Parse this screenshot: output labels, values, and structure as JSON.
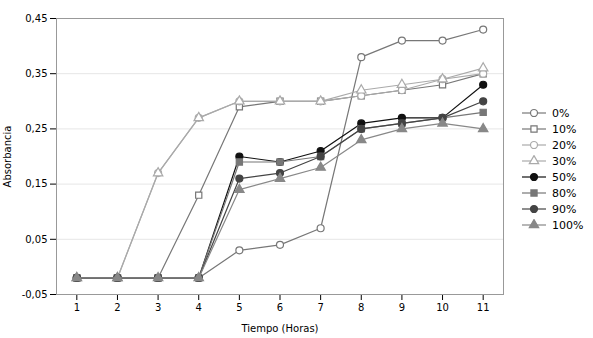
{
  "chart_data": {
    "type": "line",
    "xlabel": "Tiempo (Horas)",
    "ylabel": "Absorbancia",
    "x": [
      1,
      2,
      3,
      4,
      5,
      6,
      7,
      8,
      9,
      10,
      11
    ],
    "series": [
      {
        "name": "0%",
        "color": "#777777",
        "marker": "circle-open",
        "values": [
          -0.02,
          -0.02,
          -0.02,
          -0.02,
          0.03,
          0.04,
          0.07,
          0.38,
          0.41,
          0.41,
          0.43
        ]
      },
      {
        "name": "10%",
        "color": "#777777",
        "marker": "square-open",
        "values": [
          -0.02,
          -0.02,
          -0.02,
          0.13,
          0.29,
          0.3,
          0.3,
          0.31,
          0.32,
          0.33,
          0.35
        ]
      },
      {
        "name": "20%",
        "color": "#aaaaaa",
        "marker": "circle-open",
        "values": [
          -0.02,
          -0.02,
          0.17,
          0.27,
          0.3,
          0.3,
          0.3,
          0.31,
          0.32,
          0.34,
          0.35
        ]
      },
      {
        "name": "30%",
        "color": "#aaaaaa",
        "marker": "triangle-open",
        "values": [
          -0.02,
          -0.02,
          0.17,
          0.27,
          0.3,
          0.3,
          0.3,
          0.32,
          0.33,
          0.34,
          0.36
        ]
      },
      {
        "name": "50%",
        "color": "#111111",
        "marker": "circle",
        "values": [
          -0.02,
          -0.02,
          -0.02,
          -0.02,
          0.2,
          0.19,
          0.21,
          0.26,
          0.27,
          0.27,
          0.33
        ]
      },
      {
        "name": "80%",
        "color": "#777777",
        "marker": "square",
        "values": [
          -0.02,
          -0.02,
          -0.02,
          -0.02,
          0.19,
          0.19,
          0.2,
          0.25,
          0.26,
          0.27,
          0.28
        ]
      },
      {
        "name": "90%",
        "color": "#444444",
        "marker": "circle",
        "values": [
          -0.02,
          -0.02,
          -0.02,
          -0.02,
          0.16,
          0.17,
          0.2,
          0.25,
          0.26,
          0.27,
          0.3
        ]
      },
      {
        "name": "100%",
        "color": "#888888",
        "marker": "triangle",
        "values": [
          -0.02,
          -0.02,
          -0.02,
          -0.02,
          0.14,
          0.16,
          0.18,
          0.23,
          0.25,
          0.26,
          0.25
        ]
      }
    ],
    "xlim": [
      0.5,
      11.5
    ],
    "ylim": [
      -0.05,
      0.45
    ],
    "xticks": [
      1,
      2,
      3,
      4,
      5,
      6,
      7,
      8,
      9,
      10,
      11
    ],
    "yticks": [
      {
        "value": -0.05,
        "label": "-0,05"
      },
      {
        "value": 0.05,
        "label": "0,05"
      },
      {
        "value": 0.15,
        "label": "0,15"
      },
      {
        "value": 0.25,
        "label": "0,25"
      },
      {
        "value": 0.35,
        "label": "0,35"
      },
      {
        "value": 0.45,
        "label": "0,45"
      }
    ],
    "grid": true,
    "legend": "right"
  }
}
